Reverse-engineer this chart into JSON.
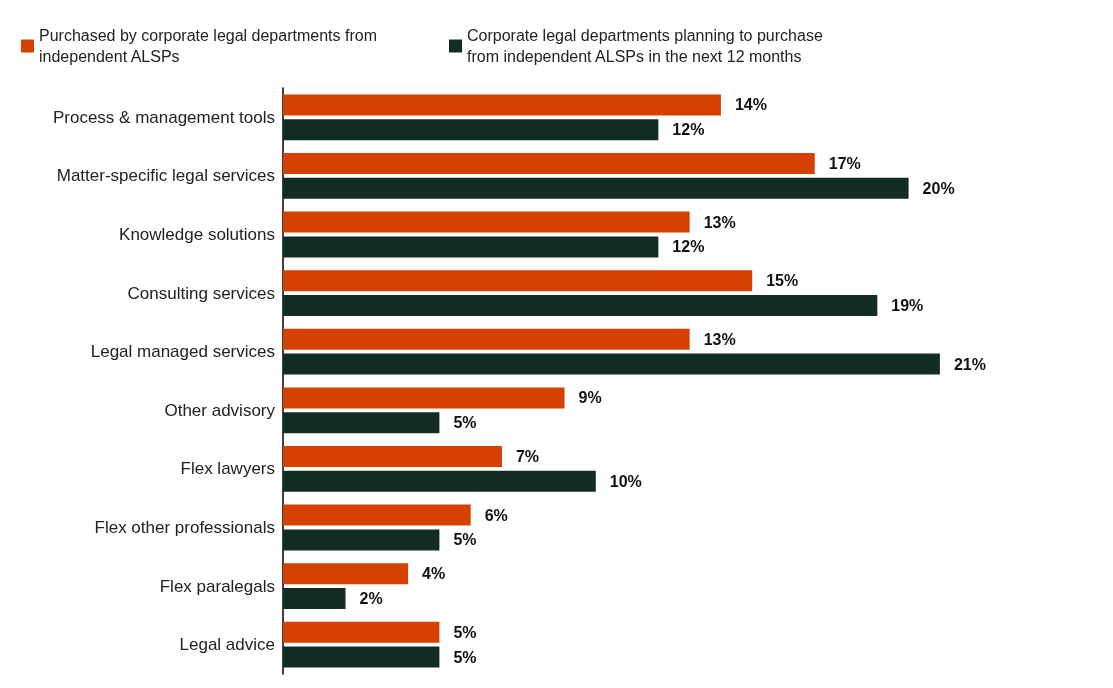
{
  "chart_data": {
    "type": "bar",
    "orientation": "horizontal",
    "legend": "top left",
    "categories": [
      "Process & management tools",
      "Matter-specific legal services",
      "Knowledge solutions",
      "Consulting services",
      "Legal managed services",
      "Other advisory",
      "Flex lawyers",
      "Flex other professionals",
      "Flex paralegals",
      "Legal advice"
    ],
    "series": [
      {
        "name": "Purchased by corporate legal departments from independent ALSPs",
        "color": "#d64000",
        "values": [
          14,
          17,
          13,
          15,
          13,
          9,
          7,
          6,
          4,
          5
        ],
        "value_labels": [
          "14%",
          "17%",
          "13%",
          "15%",
          "13%",
          "9%",
          "7%",
          "6%",
          "4%",
          "5%"
        ]
      },
      {
        "name": "Corporate legal departments planning to purchase from independent ALSPs in the next 12 months",
        "color": "#132d22",
        "values": [
          12,
          20,
          12,
          19,
          21,
          5,
          10,
          5,
          2,
          5
        ],
        "value_labels": [
          "12%",
          "20%",
          "12%",
          "19%",
          "21%",
          "5%",
          "10%",
          "5%",
          "2%",
          "5%"
        ]
      }
    ]
  }
}
